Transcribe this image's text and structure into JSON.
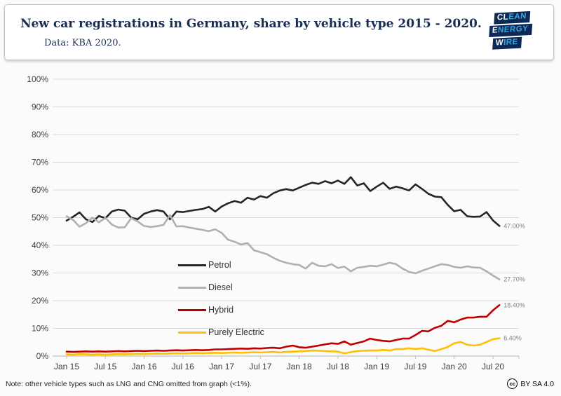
{
  "header": {
    "title": "New car registrations in Germany, share by vehicle type 2015 - 2020.",
    "subtitle": "Data: KBA 2020."
  },
  "logo": {
    "rows": [
      {
        "white": "CL",
        "accent": "EAN"
      },
      {
        "white": "E",
        "accent": "NERGY"
      },
      {
        "white": "W",
        "accent": "IRE"
      }
    ],
    "bg_color": "#0d2a56",
    "accent_color": "#3aa5dc"
  },
  "footer": {
    "note": "Note: other vehicle types such as LNG and CNG omitted from graph (<1%).",
    "license_icon": "cc",
    "license_text": "BY SA 4.0"
  },
  "chart_data": {
    "type": "line",
    "title": "New car registrations in Germany, share by vehicle type 2015 - 2020.",
    "xlabel": "",
    "ylabel": "",
    "ylim": [
      0,
      100
    ],
    "grid": true,
    "legend_position": "inside-center-left",
    "x_frequency": "monthly, Jan 2015 - Aug 2020",
    "x_tick_labels": [
      "Jan 15",
      "Jul 15",
      "Jan 16",
      "Jul 16",
      "Jan 17",
      "Jul 17",
      "Jan 18",
      "Jul 18",
      "Jan 19",
      "Jul 19",
      "Jan 20",
      "Jul 20"
    ],
    "y_tick_labels": [
      "0%",
      "10%",
      "20%",
      "30%",
      "40%",
      "50%",
      "60%",
      "70%",
      "80%",
      "90%",
      "100%"
    ],
    "series": [
      {
        "name": "Petrol",
        "color": "#262626",
        "width": 2.6,
        "end_label": "47.00%",
        "values": [
          48.9,
          50.3,
          51.9,
          49.4,
          48.4,
          50.6,
          49.8,
          52.2,
          52.9,
          52.5,
          50.0,
          49.4,
          51.4,
          52.2,
          52.7,
          52.2,
          49.4,
          52.2,
          52.0,
          52.4,
          52.8,
          53.1,
          53.9,
          52.2,
          54.0,
          55.2,
          56.0,
          55.4,
          57.2,
          56.5,
          57.8,
          57.2,
          58.8,
          59.8,
          60.3,
          59.8,
          60.8,
          61.8,
          62.6,
          62.2,
          63.2,
          62.4,
          63.4,
          62.2,
          64.6,
          61.6,
          62.4,
          59.6,
          61.2,
          62.6,
          60.4,
          61.2,
          60.6,
          59.8,
          62.0,
          60.4,
          58.6,
          57.6,
          57.4,
          54.6,
          52.3,
          52.8,
          50.5,
          50.3,
          50.4,
          52.0,
          49.0,
          47.0
        ]
      },
      {
        "name": "Diesel",
        "color": "#b0b0b0",
        "width": 2.6,
        "end_label": "27.70%",
        "values": [
          50.5,
          49.2,
          46.7,
          48.0,
          50.0,
          48.3,
          49.9,
          47.5,
          46.4,
          46.5,
          49.8,
          48.6,
          47.0,
          46.6,
          46.9,
          47.4,
          50.9,
          46.8,
          46.9,
          46.4,
          46.0,
          45.6,
          45.1,
          45.8,
          44.5,
          42.0,
          41.3,
          40.3,
          40.8,
          38.2,
          37.5,
          36.8,
          35.5,
          34.4,
          33.7,
          33.2,
          32.9,
          31.6,
          33.7,
          32.6,
          32.4,
          33.2,
          31.8,
          32.3,
          30.6,
          31.9,
          32.2,
          32.6,
          32.4,
          33.0,
          33.7,
          33.2,
          31.6,
          30.4,
          29.9,
          30.8,
          31.6,
          32.4,
          33.2,
          32.9,
          32.2,
          31.9,
          32.4,
          32.0,
          31.9,
          30.6,
          29.1,
          27.7
        ]
      },
      {
        "name": "Hybrid",
        "color": "#c00000",
        "width": 2.6,
        "end_label": "18.40%",
        "values": [
          1.6,
          1.5,
          1.6,
          1.7,
          1.6,
          1.7,
          1.6,
          1.7,
          1.8,
          1.7,
          1.8,
          1.9,
          1.8,
          1.9,
          2.0,
          1.9,
          2.0,
          2.1,
          2.0,
          2.1,
          2.2,
          2.1,
          2.2,
          2.4,
          2.4,
          2.5,
          2.6,
          2.7,
          2.6,
          2.8,
          2.7,
          2.9,
          3.0,
          2.8,
          3.4,
          3.8,
          3.2,
          3.0,
          3.4,
          3.8,
          4.2,
          4.6,
          4.4,
          5.3,
          4.1,
          4.7,
          5.3,
          6.3,
          5.8,
          5.5,
          5.3,
          5.8,
          6.3,
          6.3,
          7.6,
          9.1,
          8.9,
          10.2,
          10.9,
          12.7,
          12.2,
          13.2,
          13.9,
          13.9,
          14.2,
          14.2,
          16.5,
          18.4
        ]
      },
      {
        "name": "Purely Electric",
        "color": "#ffc000",
        "width": 2.6,
        "end_label": "6.40%",
        "values": [
          0.6,
          0.5,
          0.7,
          0.6,
          0.5,
          0.6,
          0.5,
          0.6,
          0.7,
          0.6,
          0.7,
          0.8,
          0.7,
          0.8,
          0.9,
          0.8,
          0.9,
          1.0,
          0.9,
          1.0,
          1.1,
          1.0,
          1.1,
          1.2,
          1.1,
          1.2,
          1.3,
          1.2,
          1.3,
          1.4,
          1.3,
          1.4,
          1.5,
          1.3,
          1.5,
          1.6,
          1.7,
          1.8,
          2.0,
          1.9,
          1.8,
          1.7,
          1.6,
          1.0,
          1.4,
          1.8,
          1.9,
          2.0,
          2.0,
          2.2,
          2.0,
          2.5,
          2.5,
          2.8,
          2.5,
          2.8,
          2.3,
          1.8,
          2.5,
          3.3,
          4.6,
          5.1,
          4.1,
          3.8,
          4.1,
          5.1,
          6.1,
          6.4
        ]
      }
    ]
  }
}
